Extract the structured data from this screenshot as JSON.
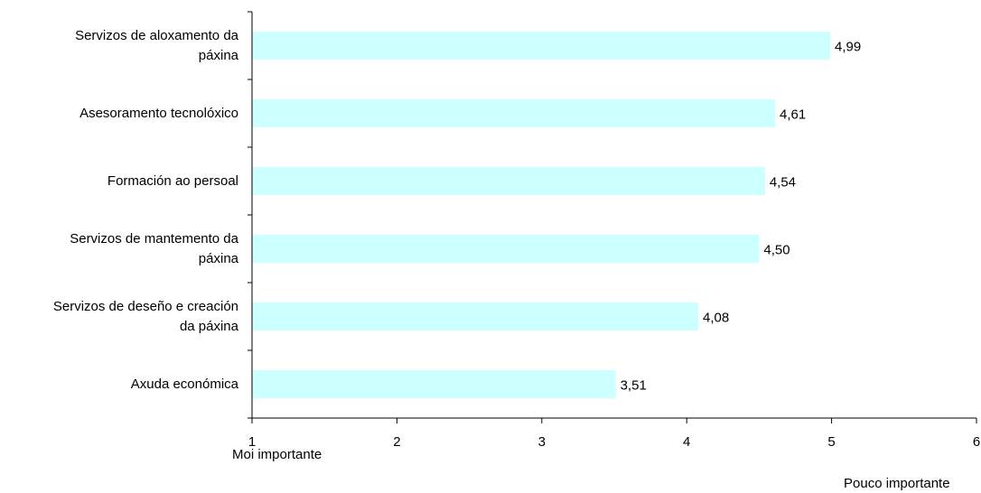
{
  "chart_data": {
    "type": "bar",
    "orientation": "horizontal",
    "categories": [
      "Servizos de aloxamento da\npáxina",
      "Asesoramento tecnolóxico",
      "Formación ao persoal",
      "Servizos de mantemento da\npáxina",
      "Servizos de deseño e creación\nda páxina",
      "Axuda económica"
    ],
    "values": [
      4.99,
      4.61,
      4.54,
      4.5,
      4.08,
      3.51
    ],
    "value_labels": [
      "4,99",
      "4,61",
      "4,54",
      "4,50",
      "4,08",
      "3,51"
    ],
    "xlim": [
      1,
      6
    ],
    "xticks": [
      "1",
      "2",
      "3",
      "4",
      "5",
      "6"
    ],
    "bar_color": "#ccffff",
    "axis_color": "#000000",
    "grid": false,
    "axis_notes": {
      "min_label": "Moi importante",
      "max_label": "Pouco importante"
    }
  }
}
